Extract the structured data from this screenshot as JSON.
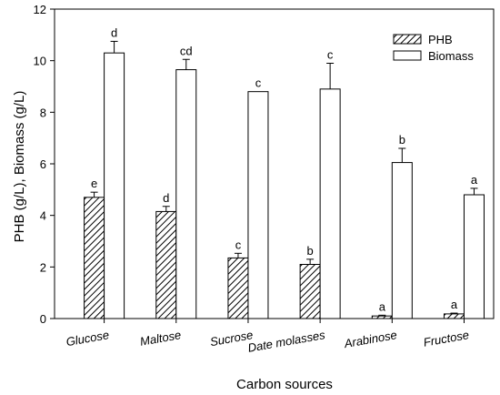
{
  "chart_data": {
    "type": "bar",
    "xlabel": "Carbon sources",
    "ylabel": "PHB (g/L), Biomass (g/L)",
    "ylim": [
      0,
      12
    ],
    "yticks": [
      0,
      2,
      4,
      6,
      8,
      10,
      12
    ],
    "grid": false,
    "legend_position": "top-right",
    "categories": [
      "Glucose",
      "Maltose",
      "Sucrose",
      "Date molasses",
      "Arabinose",
      "Fructose"
    ],
    "series": [
      {
        "name": "PHB",
        "pattern": "diagonal-hatch",
        "values": [
          4.7,
          4.15,
          2.35,
          2.1,
          0.1,
          0.18
        ],
        "errors": [
          0.2,
          0.2,
          0.18,
          0.2,
          0.03,
          0.03
        ],
        "significance": [
          "e",
          "d",
          "c",
          "b",
          "a",
          "a"
        ]
      },
      {
        "name": "Biomass",
        "pattern": "open",
        "values": [
          10.3,
          9.65,
          8.8,
          8.9,
          6.05,
          4.8
        ],
        "errors": [
          0.45,
          0.4,
          0.0,
          1.0,
          0.55,
          0.25
        ],
        "significance": [
          "d",
          "cd",
          "c",
          "c",
          "b",
          "a"
        ]
      }
    ]
  }
}
